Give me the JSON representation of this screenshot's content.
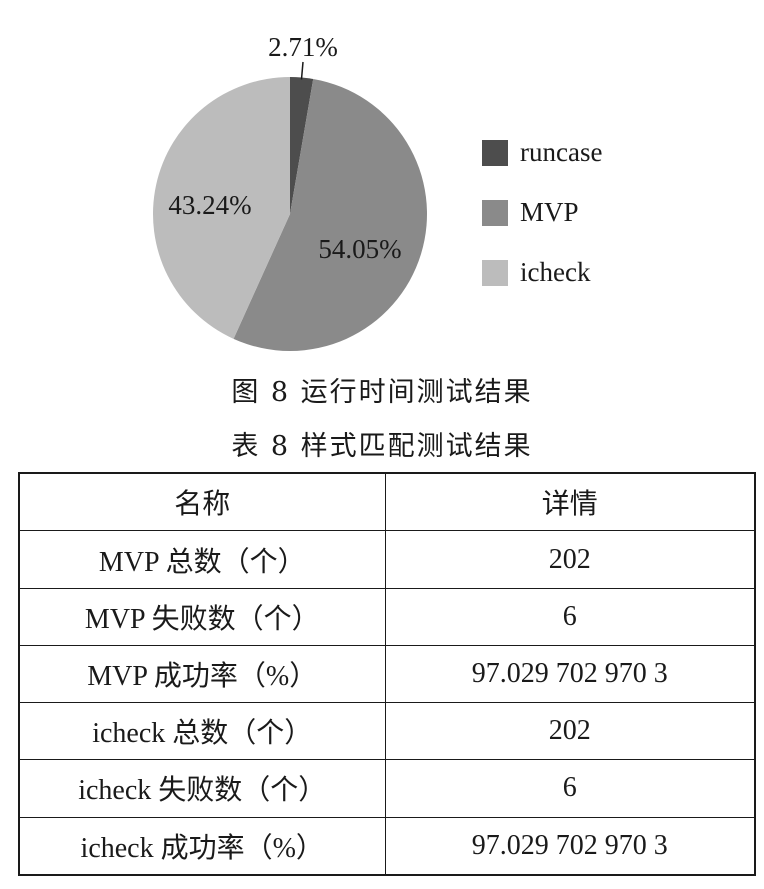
{
  "chart_data": {
    "type": "pie",
    "slices": [
      {
        "label": "runcase",
        "value": 2.71,
        "value_label": "2.71%",
        "color": "#4d4d4d"
      },
      {
        "label": "MVP",
        "value": 54.05,
        "value_label": "54.05%",
        "color": "#8a8a8a"
      },
      {
        "label": "icheck",
        "value": 43.24,
        "value_label": "43.24%",
        "color": "#bcbcbc"
      }
    ],
    "legend_position": "right"
  },
  "legend": {
    "items": [
      {
        "label": "runcase",
        "color": "#4d4d4d"
      },
      {
        "label": "MVP",
        "color": "#8a8a8a"
      },
      {
        "label": "icheck",
        "color": "#bcbcbc"
      }
    ]
  },
  "figure_caption": "图 8   运行时间测试结果",
  "table": {
    "caption": "表 8   样式匹配测试结果",
    "headers": [
      "名称",
      "详情"
    ],
    "rows": [
      [
        "MVP 总数（个）",
        "202"
      ],
      [
        "MVP 失败数（个）",
        "6"
      ],
      [
        "MVP 成功率（%）",
        "97.029 702 970 3"
      ],
      [
        "icheck 总数（个）",
        "202"
      ],
      [
        "icheck 失败数（个）",
        "6"
      ],
      [
        "icheck 成功率（%）",
        "97.029 702 970 3"
      ]
    ]
  }
}
